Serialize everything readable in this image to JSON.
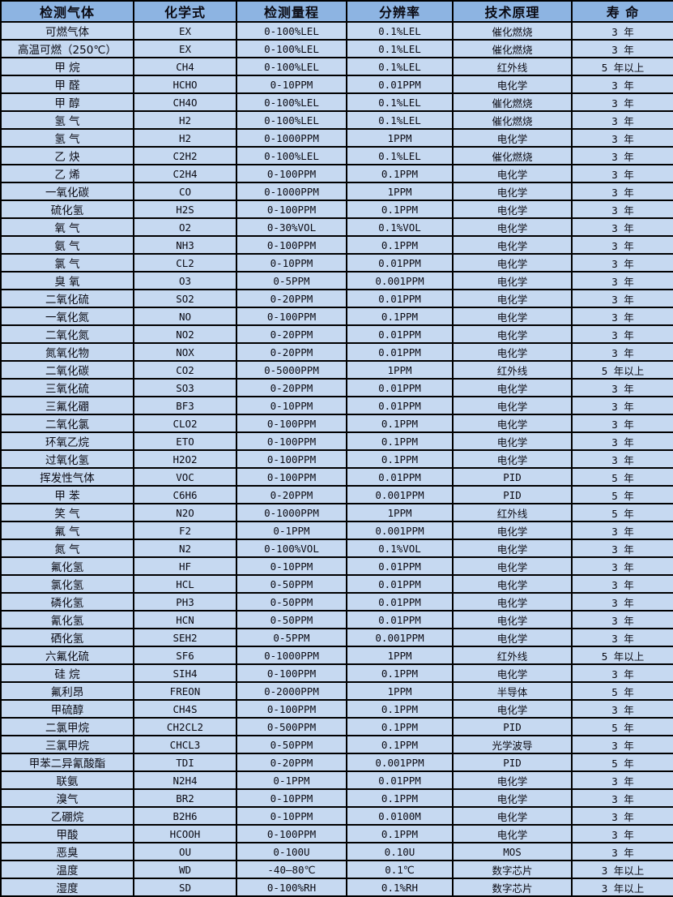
{
  "colors": {
    "header_bg": "#8DB4E2",
    "row_bg": "#C6D9F1",
    "border": "#000000",
    "text": "#0b0b14"
  },
  "table": {
    "headers": [
      "检测气体",
      "化学式",
      "检测量程",
      "分辨率",
      "技术原理",
      "寿 命"
    ],
    "column_names": [
      "gas-name",
      "chemical-formula",
      "detection-range",
      "resolution",
      "technology-principle",
      "lifespan"
    ],
    "rows": [
      [
        "可燃气体",
        "EX",
        "0-100%LEL",
        "0.1%LEL",
        "催化燃烧",
        "3 年"
      ],
      [
        "高温可燃（250℃）",
        "EX",
        "0-100%LEL",
        "0.1%LEL",
        "催化燃烧",
        "3 年"
      ],
      [
        "甲 烷",
        "CH4",
        "0-100%LEL",
        "0.1%LEL",
        "红外线",
        "5 年以上"
      ],
      [
        "甲 醛",
        "HCHO",
        "0-10PPM",
        "0.01PPM",
        "电化学",
        "3 年"
      ],
      [
        "甲 醇",
        "CH4O",
        "0-100%LEL",
        "0.1%LEL",
        "催化燃烧",
        "3 年"
      ],
      [
        "氢 气",
        "H2",
        "0-100%LEL",
        "0.1%LEL",
        "催化燃烧",
        "3 年"
      ],
      [
        "氢 气",
        "H2",
        "0-1000PPM",
        "1PPM",
        "电化学",
        "3 年"
      ],
      [
        "乙 炔",
        "C2H2",
        "0-100%LEL",
        "0.1%LEL",
        "催化燃烧",
        "3 年"
      ],
      [
        "乙 烯",
        "C2H4",
        "0-100PPM",
        "0.1PPM",
        "电化学",
        "3 年"
      ],
      [
        "一氧化碳",
        "CO",
        "0-1000PPM",
        "1PPM",
        "电化学",
        "3 年"
      ],
      [
        "硫化氢",
        "H2S",
        "0-100PPM",
        "0.1PPM",
        "电化学",
        "3 年"
      ],
      [
        "氧 气",
        "O2",
        "0-30%VOL",
        "0.1%VOL",
        "电化学",
        "3 年"
      ],
      [
        "氨 气",
        "NH3",
        "0-100PPM",
        "0.1PPM",
        "电化学",
        "3 年"
      ],
      [
        "氯 气",
        "CL2",
        "0-10PPM",
        "0.01PPM",
        "电化学",
        "3 年"
      ],
      [
        "臭 氧",
        "O3",
        "0-5PPM",
        "0.001PPM",
        "电化学",
        "3 年"
      ],
      [
        "二氧化硫",
        "SO2",
        "0-20PPM",
        "0.01PPM",
        "电化学",
        "3 年"
      ],
      [
        "一氧化氮",
        "NO",
        "0-100PPM",
        "0.1PPM",
        "电化学",
        "3 年"
      ],
      [
        "二氧化氮",
        "NO2",
        "0-20PPM",
        "0.01PPM",
        "电化学",
        "3 年"
      ],
      [
        "氮氧化物",
        "NOX",
        "0-20PPM",
        "0.01PPM",
        "电化学",
        "3 年"
      ],
      [
        "二氧化碳",
        "CO2",
        "0-5000PPM",
        "1PPM",
        "红外线",
        "5 年以上"
      ],
      [
        "三氧化硫",
        "SO3",
        "0-20PPM",
        "0.01PPM",
        "电化学",
        "3 年"
      ],
      [
        "三氟化硼",
        "BF3",
        "0-10PPM",
        "0.01PPM",
        "电化学",
        "3 年"
      ],
      [
        "二氧化氯",
        "CLO2",
        "0-100PPM",
        "0.1PPM",
        "电化学",
        "3 年"
      ],
      [
        "环氧乙烷",
        "ETO",
        "0-100PPM",
        "0.1PPM",
        "电化学",
        "3 年"
      ],
      [
        "过氧化氢",
        "H2O2",
        "0-100PPM",
        "0.1PPM",
        "电化学",
        "3 年"
      ],
      [
        "挥发性气体",
        "VOC",
        "0-100PPM",
        "0.01PPM",
        "PID",
        "5 年"
      ],
      [
        "甲 苯",
        "C6H6",
        "0-20PPM",
        "0.001PPM",
        "PID",
        "5 年"
      ],
      [
        "笑 气",
        "N2O",
        "0-1000PPM",
        "1PPM",
        "红外线",
        "5 年"
      ],
      [
        "氟 气",
        "F2",
        "0-1PPM",
        "0.001PPM",
        "电化学",
        "3 年"
      ],
      [
        "氮 气",
        "N2",
        "0-100%VOL",
        "0.1%VOL",
        "电化学",
        "3 年"
      ],
      [
        "氟化氢",
        "HF",
        "0-10PPM",
        "0.01PPM",
        "电化学",
        "3 年"
      ],
      [
        "氯化氢",
        "HCL",
        "0-50PPM",
        "0.01PPM",
        "电化学",
        "3 年"
      ],
      [
        "磷化氢",
        "PH3",
        "0-50PPM",
        "0.01PPM",
        "电化学",
        "3 年"
      ],
      [
        "氰化氢",
        "HCN",
        "0-50PPM",
        "0.01PPM",
        "电化学",
        "3 年"
      ],
      [
        "硒化氢",
        "SEH2",
        "0-5PPM",
        "0.001PPM",
        "电化学",
        "3 年"
      ],
      [
        "六氟化硫",
        "SF6",
        "0-1000PPM",
        "1PPM",
        "红外线",
        "5 年以上"
      ],
      [
        "硅 烷",
        "SIH4",
        "0-100PPM",
        "0.1PPM",
        "电化学",
        "3 年"
      ],
      [
        "氟利昂",
        "FREON",
        "0-2000PPM",
        "1PPM",
        "半导体",
        "5 年"
      ],
      [
        "甲硫醇",
        "CH4S",
        "0-100PPM",
        "0.1PPM",
        "电化学",
        "3 年"
      ],
      [
        "二氯甲烷",
        "CH2CL2",
        "0-500PPM",
        "0.1PPM",
        "PID",
        "5 年"
      ],
      [
        "三氯甲烷",
        "CHCL3",
        "0-50PPM",
        "0.1PPM",
        "光学波导",
        "3 年"
      ],
      [
        "甲苯二异氰酸酯",
        "TDI",
        "0-20PPM",
        "0.001PPM",
        "PID",
        "5 年"
      ],
      [
        "联氨",
        "N2H4",
        "0-1PPM",
        "0.01PPM",
        "电化学",
        "3 年"
      ],
      [
        "溴气",
        "BR2",
        "0-10PPM",
        "0.1PPM",
        "电化学",
        "3 年"
      ],
      [
        "乙硼烷",
        "B2H6",
        "0-10PPM",
        "0.0100M",
        "电化学",
        "3 年"
      ],
      [
        "甲酸",
        "HCOOH",
        "0-100PPM",
        "0.1PPM",
        "电化学",
        "3 年"
      ],
      [
        "恶臭",
        "OU",
        "0-100U",
        "0.10U",
        "MOS",
        "3 年"
      ],
      [
        "温度",
        "WD",
        "-40—80℃",
        "0.1℃",
        "数字芯片",
        "3 年以上"
      ],
      [
        "湿度",
        "SD",
        "0-100%RH",
        "0.1%RH",
        "数字芯片",
        "3 年以上"
      ]
    ]
  }
}
